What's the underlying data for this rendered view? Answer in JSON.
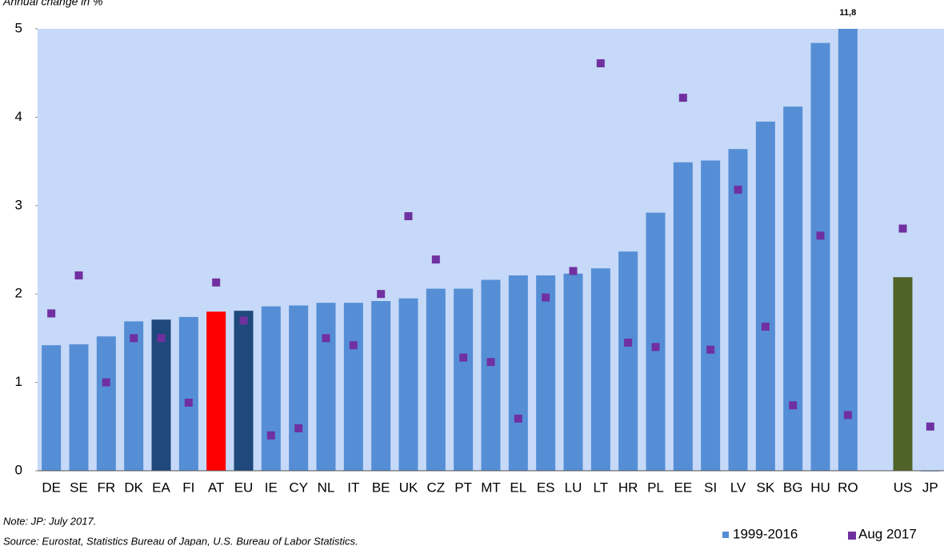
{
  "chart_data": {
    "type": "bar",
    "subtitle": "Annual change in %",
    "categories": [
      "DE",
      "SE",
      "FR",
      "DK",
      "EA",
      "FI",
      "AT",
      "EU",
      "IE",
      "CY",
      "NL",
      "IT",
      "BE",
      "UK",
      "CZ",
      "PT",
      "MT",
      "EL",
      "ES",
      "LU",
      "LT",
      "HR",
      "PL",
      "EE",
      "SI",
      "LV",
      "SK",
      "BG",
      "HU",
      "RO",
      null,
      "US",
      "JP"
    ],
    "series": [
      {
        "name": "1999-2016",
        "color": "#558ed5",
        "colors": [
          "#558ed5",
          "#558ed5",
          "#558ed5",
          "#558ed5",
          "#1f497d",
          "#558ed5",
          "#ff0000",
          "#1f497d",
          "#558ed5",
          "#558ed5",
          "#558ed5",
          "#558ed5",
          "#558ed5",
          "#558ed5",
          "#558ed5",
          "#558ed5",
          "#558ed5",
          "#558ed5",
          "#558ed5",
          "#558ed5",
          "#558ed5",
          "#558ed5",
          "#558ed5",
          "#558ed5",
          "#558ed5",
          "#558ed5",
          "#558ed5",
          "#558ed5",
          "#558ed5",
          "#558ed5",
          null,
          "#4f6228",
          "#558ed5"
        ],
        "values": [
          1.42,
          1.43,
          1.52,
          1.69,
          1.71,
          1.74,
          1.8,
          1.81,
          1.86,
          1.87,
          1.9,
          1.9,
          1.92,
          1.95,
          2.06,
          2.06,
          2.16,
          2.21,
          2.21,
          2.23,
          2.29,
          2.48,
          2.92,
          3.49,
          3.51,
          3.64,
          3.95,
          4.12,
          4.84,
          11.8,
          null,
          2.19,
          0
        ],
        "value_labels": [
          null,
          null,
          null,
          null,
          null,
          null,
          null,
          null,
          null,
          null,
          null,
          null,
          null,
          null,
          null,
          null,
          null,
          null,
          null,
          null,
          null,
          null,
          null,
          null,
          null,
          null,
          null,
          null,
          null,
          "11,8",
          null,
          null,
          null
        ]
      },
      {
        "name": "Aug 2017",
        "color": "#7030a0",
        "marker": "square",
        "values": [
          1.78,
          2.21,
          1.0,
          1.5,
          1.5,
          0.77,
          2.13,
          1.7,
          0.4,
          0.48,
          1.5,
          1.42,
          2.0,
          2.88,
          2.39,
          1.28,
          1.23,
          0.59,
          1.96,
          2.26,
          4.61,
          1.45,
          1.4,
          4.22,
          1.37,
          3.18,
          1.63,
          0.74,
          2.66,
          0.63,
          null,
          2.74,
          0.5
        ]
      }
    ],
    "ylim": [
      0,
      5
    ],
    "yticks": [
      0,
      1,
      2,
      3,
      4,
      5
    ],
    "plot_background": "#c6d9f8",
    "notes": [
      "Note: JP: July 2017.",
      "Source: Eurostat, Statistics Bureau of Japan, U.S. Bureau of Labor Statistics."
    ],
    "legend": "bottom-right"
  }
}
